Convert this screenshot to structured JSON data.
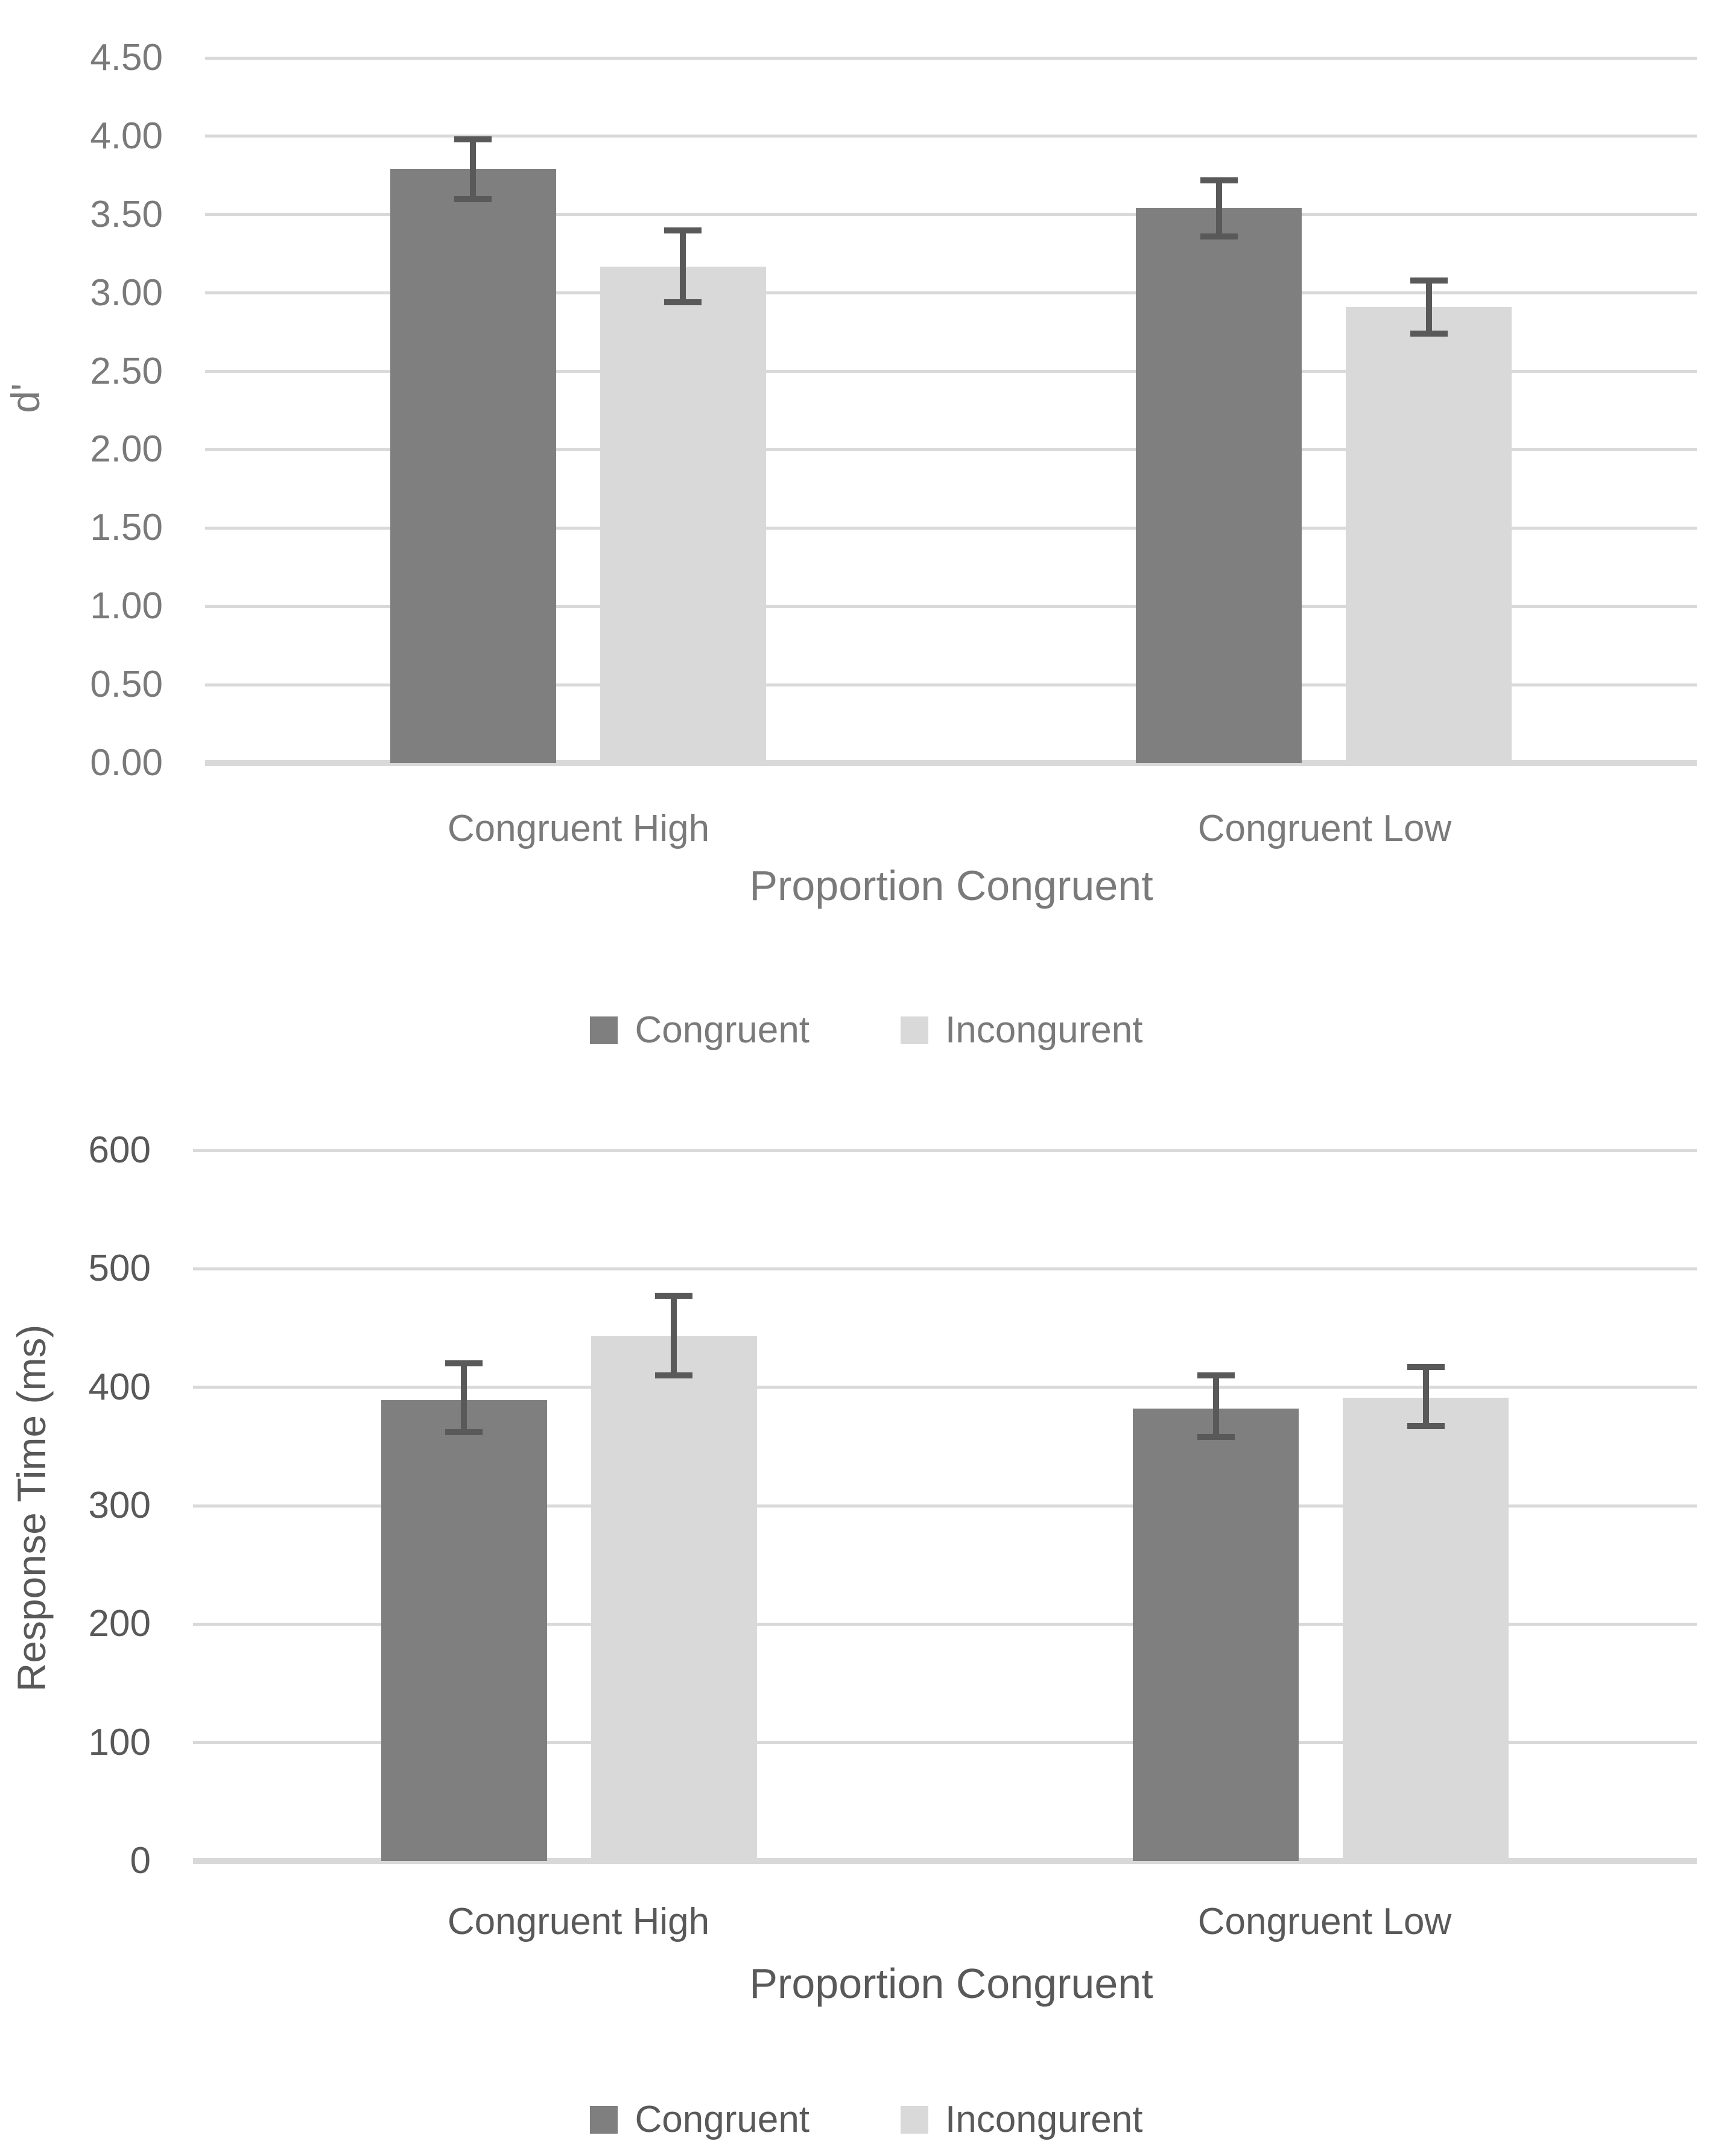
{
  "page": {
    "background_color": "#FFFFFF"
  },
  "colors": {
    "congruent_bar": "#7F7F7F",
    "incongurent_bar": "#D9D9D9",
    "error_bar": "#595959",
    "gridline": "#D9D9D9",
    "top_chart_text": "#7A7A7A",
    "bottom_chart_text": "#595959"
  },
  "chart_data": [
    {
      "type": "bar",
      "title": "",
      "ylabel": "d'",
      "xlabel": "Proportion Congruent",
      "categories": [
        "Congruent High",
        "Congruent Low"
      ],
      "y_ticks": [
        "4.50",
        "4.00",
        "3.50",
        "3.00",
        "2.50",
        "2.00",
        "1.50",
        "1.00",
        "0.50",
        "0.00"
      ],
      "ylim": [
        0,
        4.5
      ],
      "y_step": 0.5,
      "grid": true,
      "legend_position": "bottom",
      "text_color": "#7A7A7A",
      "series": [
        {
          "name": "Congruent",
          "color": "#7F7F7F",
          "values": [
            3.79,
            3.54
          ],
          "error_low": [
            3.6,
            3.36
          ],
          "error_high": [
            3.98,
            3.72
          ]
        },
        {
          "name": "Incongurent",
          "color": "#D9D9D9",
          "values": [
            3.17,
            2.91
          ],
          "error_low": [
            2.94,
            2.74
          ],
          "error_high": [
            3.4,
            3.08
          ]
        }
      ]
    },
    {
      "type": "bar",
      "title": "",
      "ylabel": "Response Time (ms)",
      "xlabel": "Proportion Congruent",
      "categories": [
        "Congruent High",
        "Congruent Low"
      ],
      "y_ticks": [
        "600",
        "500",
        "400",
        "300",
        "200",
        "100",
        "0"
      ],
      "ylim": [
        0,
        600
      ],
      "y_step": 100,
      "grid": true,
      "legend_position": "bottom",
      "text_color": "#595959",
      "series": [
        {
          "name": "Congruent",
          "color": "#7F7F7F",
          "values": [
            389,
            382
          ],
          "error_low": [
            362,
            358
          ],
          "error_high": [
            420,
            410
          ]
        },
        {
          "name": "Incongurent",
          "color": "#D9D9D9",
          "values": [
            443,
            391
          ],
          "error_low": [
            410,
            367
          ],
          "error_high": [
            477,
            417
          ]
        }
      ]
    }
  ]
}
